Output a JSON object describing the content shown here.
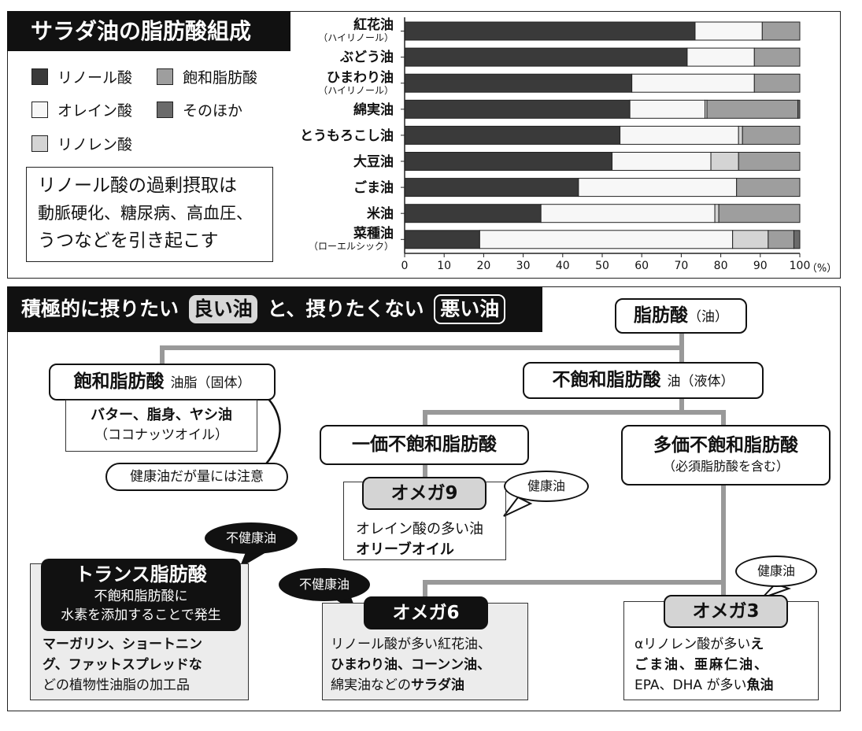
{
  "top": {
    "title": "サラダ油の脂肪酸組成",
    "legend": [
      {
        "label": "リノール酸",
        "color": "#3a3a3a"
      },
      {
        "label": "飽和脂肪酸",
        "color": "#9e9e9e"
      },
      {
        "label": "オレイン酸",
        "color": "#f7f7f7"
      },
      {
        "label": "そのほか",
        "color": "#6a6a6a"
      },
      {
        "label": "リノレン酸",
        "color": "#d4d4d4"
      }
    ],
    "note_lines": [
      "リノール酸の過剰摂取は",
      "動脈硬化、糖尿病、高血圧、",
      "うつなどを引き起こす"
    ]
  },
  "chart_data": {
    "type": "bar",
    "orientation": "horizontal",
    "stacked": true,
    "categories": [
      "紅花油",
      "ぶどう油",
      "ひまわり油",
      "綿実油",
      "とうもろこし油",
      "大豆油",
      "ごま油",
      "米油",
      "菜種油"
    ],
    "category_sublabels": [
      "（ハイリノール）",
      "",
      "（ハイリノール）",
      "",
      "",
      "",
      "",
      "",
      "（ローエルシック）"
    ],
    "series": [
      {
        "name": "リノール酸",
        "values": [
          73.5,
          71.5,
          57.5,
          57,
          54.5,
          52.5,
          44,
          34.5,
          19
        ]
      },
      {
        "name": "オレイン酸",
        "values": [
          17,
          17,
          31,
          19,
          30,
          25,
          40,
          44,
          64
        ]
      },
      {
        "name": "リノレン酸",
        "values": [
          0,
          0,
          0,
          0.5,
          1,
          7,
          0,
          1,
          9
        ]
      },
      {
        "name": "飽和脂肪酸",
        "values": [
          9.5,
          11.5,
          11.5,
          23,
          14.5,
          15.5,
          16,
          20.5,
          6.5
        ]
      },
      {
        "name": "そのほか",
        "values": [
          0,
          0,
          0,
          0.5,
          0,
          0,
          0,
          0,
          1.5
        ]
      }
    ],
    "series_colors": [
      "#3a3a3a",
      "#f7f7f7",
      "#d4d4d4",
      "#9e9e9e",
      "#6a6a6a"
    ],
    "xlim": [
      0,
      100
    ],
    "xticks": [
      "0",
      "10",
      "20",
      "30",
      "40",
      "50",
      "60",
      "70",
      "80",
      "90",
      "100"
    ],
    "x_unit": "（%）"
  },
  "bottom": {
    "header_a": "積極的に摂りたい",
    "header_good": "良い油",
    "header_b": "と、摂りたくない",
    "header_bad": "悪い油",
    "root": {
      "main": "脂肪酸",
      "sub": "（油）"
    },
    "saturated": {
      "main": "飽和脂肪酸",
      "sub": "油脂（固体）",
      "ex1": "バター、脂身、ヤシ油",
      "ex2": "（ココナッツオイル）",
      "caution": "健康油だが量には注意"
    },
    "unsaturated": {
      "main": "不飽和脂肪酸",
      "sub": "油（液体）"
    },
    "mono": {
      "main": "一価不飽和脂肪酸"
    },
    "poly": {
      "main": "多価不飽和脂肪酸",
      "sub": "（必須脂肪酸を含む）"
    },
    "omega9": {
      "label": "オメガ9",
      "tag": "健康油",
      "line1": "オレイン酸の多い油",
      "line2": "オリーブオイル"
    },
    "omega6": {
      "label": "オメガ6",
      "tag": "不健康油",
      "line1": "リノール酸が多い紅花油、",
      "line2": "ひまわり油、コーンン油、",
      "line3a": "綿実油などの",
      "line3b": "サラダ油"
    },
    "omega3": {
      "label": "オメガ3",
      "tag": "健康油",
      "line1a": "αリノレン酸が多い",
      "line1b": "え",
      "line2": "ごま油、亜麻仁油、",
      "line3a": "EPA、DHA が多い",
      "line3b": "魚油"
    },
    "trans": {
      "tag": "不健康油",
      "title": "トランス脂肪酸",
      "desc1": "不飽和脂肪酸に",
      "desc2": "水素を添加することで発生",
      "ex1": "マーガリン、ショートニン",
      "ex2": "グ、ファットスプレッドな",
      "ex3": "どの植物性油脂の加工品"
    }
  }
}
